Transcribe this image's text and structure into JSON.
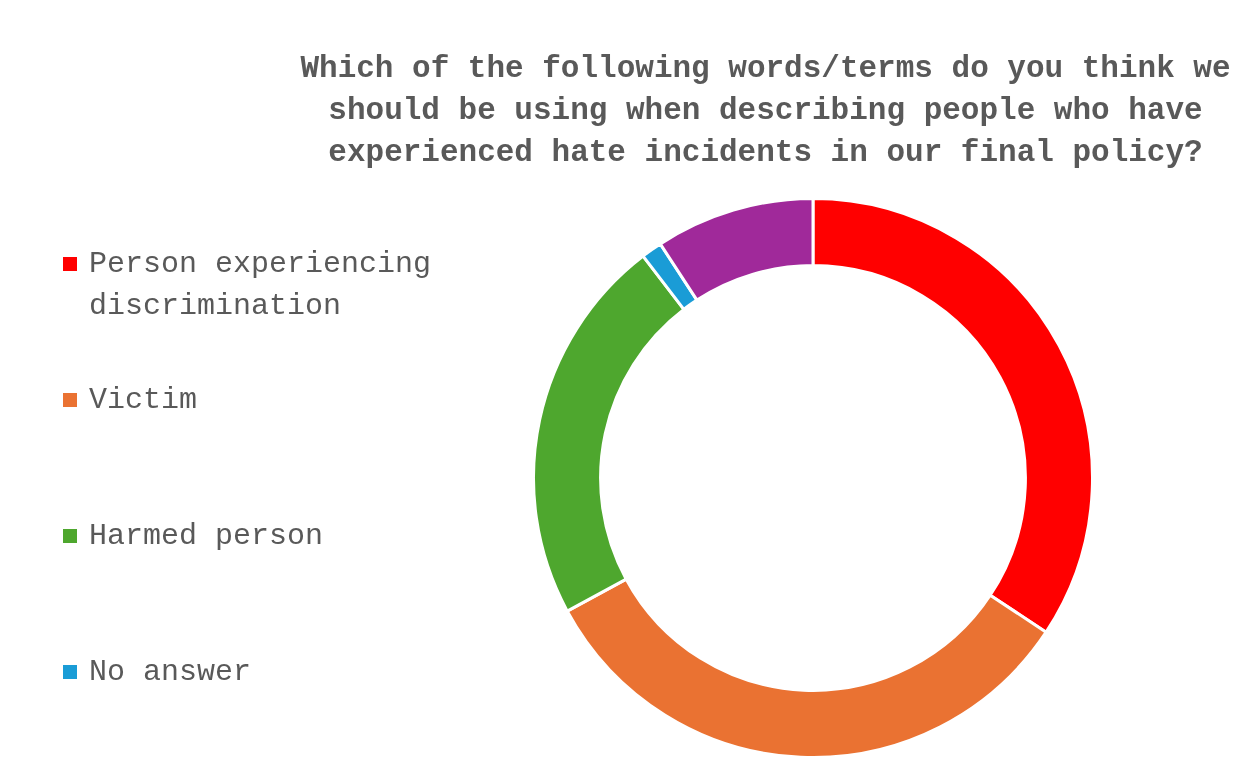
{
  "chart_data": {
    "type": "donut",
    "title": "Which of the following words/terms do you think we should be using when describing people who have experienced hate incidents in our final policy?",
    "categories": [
      "Person experiencing discrimination",
      "Victim",
      "Harmed person",
      "No answer",
      null
    ],
    "values": [
      34.3,
      32.8,
      22.5,
      1.2,
      9.2
    ],
    "colors": [
      "#ff0000",
      "#ea7232",
      "#4ea72e",
      "#1a9cd6",
      "#a0299a"
    ],
    "legend": "left"
  }
}
